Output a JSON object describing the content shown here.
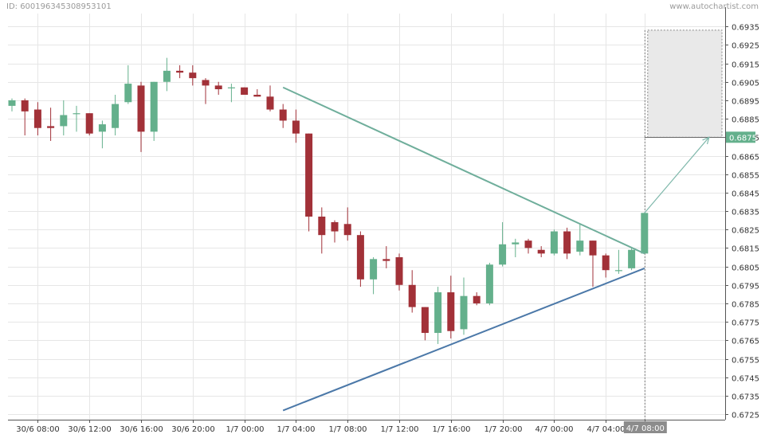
{
  "header": {
    "id_text": "ID: 600196345308953101",
    "watermark": "www.autochartist.com"
  },
  "chart_data": {
    "type": "candlestick",
    "title": "",
    "xlabel": "",
    "ylabel": "",
    "ylim": [
      0.6722,
      0.6942
    ],
    "grid": true,
    "y_ticks": [
      "0.6935",
      "0.6925",
      "0.6915",
      "0.6905",
      "0.6895",
      "0.6885",
      "0.6875",
      "0.6865",
      "0.6855",
      "0.6845",
      "0.6835",
      "0.6825",
      "0.6815",
      "0.6805",
      "0.6795",
      "0.6785",
      "0.6775",
      "0.6765",
      "0.6755",
      "0.6745",
      "0.6735",
      "0.6725"
    ],
    "x_ticks": [
      {
        "label": "30/6 08:00",
        "index": 2
      },
      {
        "label": "30/6 12:00",
        "index": 6
      },
      {
        "label": "30/6 16:00",
        "index": 10
      },
      {
        "label": "30/6 20:00",
        "index": 14
      },
      {
        "label": "1/7 00:00",
        "index": 18
      },
      {
        "label": "1/7 04:00",
        "index": 22
      },
      {
        "label": "1/7 08:00",
        "index": 26
      },
      {
        "label": "1/7 12:00",
        "index": 30
      },
      {
        "label": "1/7 16:00",
        "index": 34
      },
      {
        "label": "1/7 20:00",
        "index": 38
      },
      {
        "label": "4/7 00:00",
        "index": 42
      },
      {
        "label": "4/7 04:00",
        "index": 46
      },
      {
        "label": "4/7 08:00",
        "index": 49
      }
    ],
    "current_time_label": "4/7 08:00",
    "current_price_label": "0.6875",
    "candles": [
      {
        "o": 0.6892,
        "h": 0.6896,
        "l": 0.6889,
        "c": 0.6895
      },
      {
        "o": 0.6895,
        "h": 0.6896,
        "l": 0.6876,
        "c": 0.6889
      },
      {
        "o": 0.689,
        "h": 0.6894,
        "l": 0.6876,
        "c": 0.688
      },
      {
        "o": 0.6881,
        "h": 0.6891,
        "l": 0.6873,
        "c": 0.688
      },
      {
        "o": 0.6881,
        "h": 0.6895,
        "l": 0.6876,
        "c": 0.6887
      },
      {
        "o": 0.6888,
        "h": 0.6892,
        "l": 0.6878,
        "c": 0.6888
      },
      {
        "o": 0.6888,
        "h": 0.6888,
        "l": 0.6876,
        "c": 0.6877
      },
      {
        "o": 0.6878,
        "h": 0.6884,
        "l": 0.6869,
        "c": 0.6882
      },
      {
        "o": 0.688,
        "h": 0.6898,
        "l": 0.6876,
        "c": 0.6893
      },
      {
        "o": 0.6894,
        "h": 0.6914,
        "l": 0.6893,
        "c": 0.6904
      },
      {
        "o": 0.6903,
        "h": 0.6905,
        "l": 0.6867,
        "c": 0.6878
      },
      {
        "o": 0.6878,
        "h": 0.6905,
        "l": 0.6873,
        "c": 0.6905
      },
      {
        "o": 0.6905,
        "h": 0.6918,
        "l": 0.69,
        "c": 0.6911
      },
      {
        "o": 0.6911,
        "h": 0.6914,
        "l": 0.6907,
        "c": 0.691
      },
      {
        "o": 0.691,
        "h": 0.6914,
        "l": 0.6903,
        "c": 0.6907
      },
      {
        "o": 0.6906,
        "h": 0.6907,
        "l": 0.6893,
        "c": 0.6903
      },
      {
        "o": 0.6903,
        "h": 0.6905,
        "l": 0.6898,
        "c": 0.6901
      },
      {
        "o": 0.6902,
        "h": 0.6904,
        "l": 0.6894,
        "c": 0.6902
      },
      {
        "o": 0.6902,
        "h": 0.6902,
        "l": 0.6898,
        "c": 0.6898
      },
      {
        "o": 0.6898,
        "h": 0.6901,
        "l": 0.6897,
        "c": 0.6897
      },
      {
        "o": 0.6897,
        "h": 0.6903,
        "l": 0.6889,
        "c": 0.689
      },
      {
        "o": 0.689,
        "h": 0.6893,
        "l": 0.688,
        "c": 0.6884
      },
      {
        "o": 0.6884,
        "h": 0.689,
        "l": 0.6872,
        "c": 0.6877
      },
      {
        "o": 0.6877,
        "h": 0.6877,
        "l": 0.6824,
        "c": 0.6832
      },
      {
        "o": 0.6832,
        "h": 0.6837,
        "l": 0.6812,
        "c": 0.6822
      },
      {
        "o": 0.6829,
        "h": 0.683,
        "l": 0.6818,
        "c": 0.6824
      },
      {
        "o": 0.6828,
        "h": 0.6837,
        "l": 0.6819,
        "c": 0.6822
      },
      {
        "o": 0.6822,
        "h": 0.6824,
        "l": 0.6794,
        "c": 0.6798
      },
      {
        "o": 0.6798,
        "h": 0.681,
        "l": 0.679,
        "c": 0.6809
      },
      {
        "o": 0.6809,
        "h": 0.6816,
        "l": 0.6804,
        "c": 0.6808
      },
      {
        "o": 0.681,
        "h": 0.6812,
        "l": 0.6792,
        "c": 0.6795
      },
      {
        "o": 0.6795,
        "h": 0.6803,
        "l": 0.678,
        "c": 0.6783
      },
      {
        "o": 0.6783,
        "h": 0.6783,
        "l": 0.6765,
        "c": 0.6769
      },
      {
        "o": 0.6769,
        "h": 0.6794,
        "l": 0.6763,
        "c": 0.6791
      },
      {
        "o": 0.6791,
        "h": 0.68,
        "l": 0.6766,
        "c": 0.677
      },
      {
        "o": 0.6771,
        "h": 0.6799,
        "l": 0.6768,
        "c": 0.6789
      },
      {
        "o": 0.6789,
        "h": 0.6791,
        "l": 0.6784,
        "c": 0.6785
      },
      {
        "o": 0.6785,
        "h": 0.6807,
        "l": 0.6784,
        "c": 0.6806
      },
      {
        "o": 0.6806,
        "h": 0.6829,
        "l": 0.6805,
        "c": 0.6817
      },
      {
        "o": 0.6817,
        "h": 0.682,
        "l": 0.681,
        "c": 0.6818
      },
      {
        "o": 0.6819,
        "h": 0.682,
        "l": 0.6812,
        "c": 0.6815
      },
      {
        "o": 0.6814,
        "h": 0.6816,
        "l": 0.681,
        "c": 0.6812
      },
      {
        "o": 0.6812,
        "h": 0.6825,
        "l": 0.6811,
        "c": 0.6824
      },
      {
        "o": 0.6824,
        "h": 0.6826,
        "l": 0.6809,
        "c": 0.6812
      },
      {
        "o": 0.6813,
        "h": 0.6828,
        "l": 0.6811,
        "c": 0.6819
      },
      {
        "o": 0.6819,
        "h": 0.6819,
        "l": 0.6794,
        "c": 0.6811
      },
      {
        "o": 0.6811,
        "h": 0.6812,
        "l": 0.6799,
        "c": 0.6803
      },
      {
        "o": 0.6803,
        "h": 0.6814,
        "l": 0.6801,
        "c": 0.6803
      },
      {
        "o": 0.6804,
        "h": 0.6815,
        "l": 0.6803,
        "c": 0.6814
      },
      {
        "o": 0.6812,
        "h": 0.6834,
        "l": 0.6812,
        "c": 0.6834
      }
    ],
    "pattern": {
      "type": "triangle",
      "resistance": {
        "from_index": 21,
        "from_price": 0.6902,
        "to_index": 49,
        "to_price": 0.6812
      },
      "support": {
        "from_index": 21,
        "from_price": 0.6727,
        "to_index": 49,
        "to_price": 0.6804
      },
      "forecast_arrow": {
        "from_index": 49,
        "from_price": 0.6834,
        "to_index": 54,
        "to_price": 0.6875
      },
      "target_zone": {
        "from_index": 49,
        "to_index": 55,
        "price_low": 0.6875,
        "price_high": 0.6933
      }
    },
    "colors": {
      "bull": "#64b08c",
      "bear": "#a23138",
      "resistance": "#6fae9b",
      "support": "#4b78a8",
      "arrow": "#7fb8ab",
      "zone_fill": "#e9e9e9",
      "price_tag": "#64b08c",
      "time_tag": "#8c8c8c",
      "grid": "#e6e6e6",
      "axis": "#555555",
      "text": "#333333"
    }
  }
}
